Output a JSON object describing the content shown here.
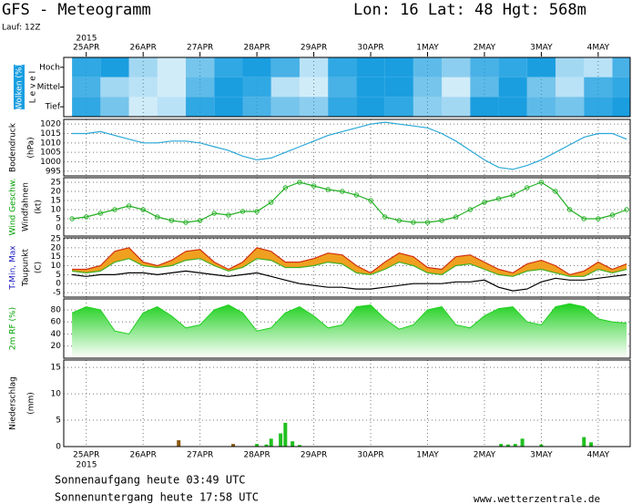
{
  "header": {
    "title": "GFS - Meteogramm",
    "location": "Lon: 16 Lat: 48 Hgt: 568m",
    "run": "Lauf: 12Z"
  },
  "time": {
    "year": "2015",
    "xlim": [
      -9.5,
      229.5
    ],
    "xticks": [
      {
        "value": 0,
        "label": "25APR"
      },
      {
        "value": 24,
        "label": "26APR"
      },
      {
        "value": 48,
        "label": "27APR"
      },
      {
        "value": 72,
        "label": "28APR"
      },
      {
        "value": 96,
        "label": "29APR"
      },
      {
        "value": 120,
        "label": "30APR"
      },
      {
        "value": 144,
        "label": "1MAY"
      },
      {
        "value": 168,
        "label": "2MAY"
      },
      {
        "value": 192,
        "label": "3MAY"
      },
      {
        "value": 216,
        "label": "4MAY"
      }
    ],
    "x": [
      -6,
      0,
      6,
      12,
      18,
      24,
      30,
      36,
      42,
      48,
      54,
      60,
      66,
      72,
      78,
      84,
      90,
      96,
      102,
      108,
      114,
      120,
      126,
      132,
      138,
      144,
      150,
      156,
      162,
      168,
      174,
      180,
      186,
      192,
      198,
      204,
      210,
      216,
      222,
      228
    ]
  },
  "chart_data": [
    {
      "type": "heatmap",
      "ylabel": [
        "Wolken (%)",
        "L e v e l"
      ],
      "color": "#1a9ee0",
      "x": [
        -6,
        6,
        18,
        30,
        42,
        54,
        66,
        78,
        90,
        102,
        114,
        126,
        138,
        150,
        162,
        174,
        186,
        198,
        210,
        222
      ],
      "series": [
        {
          "name": "Hoch",
          "values": [
            90,
            100,
            40,
            20,
            60,
            90,
            100,
            80,
            30,
            90,
            100,
            100,
            70,
            50,
            80,
            90,
            100,
            40,
            30,
            80
          ]
        },
        {
          "name": "Mittel",
          "values": [
            80,
            40,
            30,
            20,
            70,
            100,
            90,
            30,
            20,
            80,
            100,
            100,
            60,
            20,
            70,
            100,
            60,
            30,
            80,
            90
          ]
        },
        {
          "name": "Tief",
          "values": [
            90,
            60,
            20,
            30,
            90,
            100,
            80,
            60,
            50,
            90,
            100,
            90,
            50,
            40,
            100,
            100,
            70,
            60,
            90,
            100
          ]
        }
      ]
    },
    {
      "type": "line",
      "ylabel": [
        "Bodendruck",
        "(hPa)"
      ],
      "ylim": [
        992.5,
        1022.5
      ],
      "yticks": [
        995,
        1000,
        1005,
        1010,
        1015,
        1020
      ],
      "grid": true,
      "series": [
        {
          "color": "#2aa8d8",
          "values": [
            1015,
            1015,
            1016,
            1014,
            1012,
            1010,
            1010,
            1011,
            1011,
            1010,
            1008,
            1006,
            1003,
            1001,
            1002,
            1005,
            1008,
            1011,
            1014,
            1016,
            1018,
            1020,
            1021,
            1020,
            1019,
            1018,
            1015,
            1011,
            1006,
            1001,
            997,
            996,
            998,
            1001,
            1005,
            1009,
            1013,
            1015,
            1015,
            1012
          ]
        }
      ]
    },
    {
      "type": "line",
      "ylabel": [
        "Wind Geschw.",
        "Windfahnen",
        "(kt)"
      ],
      "ylabel_color": "#00a000",
      "ylim": [
        -4.5,
        27.5
      ],
      "yticks": [
        0,
        5,
        10,
        15,
        20,
        25
      ],
      "grid": true,
      "markers": true,
      "series": [
        {
          "color": "#22b022",
          "values": [
            5,
            6,
            8,
            10,
            12,
            10,
            6,
            4,
            3,
            4,
            8,
            7,
            9,
            9,
            14,
            22,
            25,
            23,
            21,
            20,
            18,
            15,
            6,
            4,
            3,
            3,
            4,
            6,
            10,
            14,
            16,
            18,
            22,
            25,
            20,
            10,
            5,
            5,
            7,
            10
          ]
        }
      ]
    },
    {
      "type": "range",
      "ylabel": [
        "T-Min, Max",
        "Taupunkt",
        "(C)"
      ],
      "ylabel_color": "#2020c0",
      "ylim": [
        -7.5,
        25.5
      ],
      "yticks": [
        -5,
        0,
        5,
        10,
        15,
        20,
        25
      ],
      "grid": true,
      "fill": "#f0a020",
      "series": [
        {
          "color": "#d03010",
          "values": [
            8,
            8,
            10,
            18,
            20,
            12,
            10,
            13,
            18,
            19,
            12,
            8,
            12,
            20,
            18,
            12,
            12,
            14,
            17,
            16,
            10,
            6,
            12,
            17,
            15,
            9,
            8,
            15,
            16,
            12,
            8,
            6,
            11,
            13,
            10,
            5,
            7,
            12,
            8,
            11
          ]
        },
        {
          "color": "#40b020",
          "values": [
            7,
            6,
            7,
            12,
            14,
            10,
            9,
            10,
            13,
            14,
            10,
            7,
            9,
            14,
            13,
            9,
            9,
            10,
            12,
            11,
            6,
            5,
            8,
            12,
            10,
            6,
            5,
            10,
            11,
            8,
            5,
            4,
            7,
            8,
            6,
            4,
            4,
            8,
            6,
            8
          ]
        },
        {
          "color": "#000000",
          "values": [
            5,
            4,
            5,
            5,
            6,
            6,
            5,
            6,
            7,
            6,
            5,
            4,
            5,
            6,
            4,
            2,
            0,
            -1,
            -2,
            -2,
            -3,
            -3,
            -2,
            -1,
            0,
            0,
            0,
            1,
            1,
            2,
            -2,
            -4,
            -3,
            1,
            3,
            2,
            2,
            3,
            4,
            5
          ]
        }
      ]
    },
    {
      "type": "area",
      "ylabel": [
        "2m RF (%)"
      ],
      "ylabel_color": "#00a000",
      "ylim": [
        0,
        98
      ],
      "yticks": [
        20,
        40,
        60,
        80
      ],
      "grid": true,
      "series": [
        {
          "color": "#20d020",
          "values": [
            75,
            85,
            80,
            45,
            40,
            75,
            85,
            70,
            50,
            55,
            80,
            88,
            75,
            45,
            50,
            75,
            85,
            70,
            50,
            55,
            85,
            88,
            65,
            48,
            55,
            80,
            85,
            55,
            50,
            70,
            82,
            85,
            60,
            55,
            85,
            90,
            85,
            65,
            60,
            58
          ]
        }
      ]
    },
    {
      "type": "bar",
      "ylabel": [
        "Niederschlag",
        "(mm)"
      ],
      "ylim": [
        0,
        16.4
      ],
      "yticks": [
        0,
        5,
        10,
        15
      ],
      "grid": true,
      "x": [
        39,
        62,
        72,
        76,
        78,
        82,
        84,
        87,
        90,
        175,
        178,
        181,
        184,
        192,
        210,
        213
      ],
      "values": [
        1.2,
        0.5,
        0.5,
        0.4,
        1.5,
        2.5,
        4.5,
        1.0,
        0.3,
        0.5,
        0.4,
        0.5,
        1.5,
        0.4,
        1.8,
        0.8
      ],
      "colors": [
        "#8a5a10",
        "#8a5a10",
        "#20c020",
        "#20c020",
        "#20c020",
        "#20c020",
        "#20c020",
        "#20c020",
        "#20c020",
        "#20c020",
        "#20c020",
        "#20c020",
        "#20c020",
        "#20c020",
        "#20c020",
        "#20c020"
      ]
    }
  ],
  "footer": {
    "sunrise": "Sonnenaufgang heute 03:49 UTC",
    "sunset": "Sonnenuntergang heute 17:58 UTC",
    "site": "www.wetterzentrale.de"
  }
}
